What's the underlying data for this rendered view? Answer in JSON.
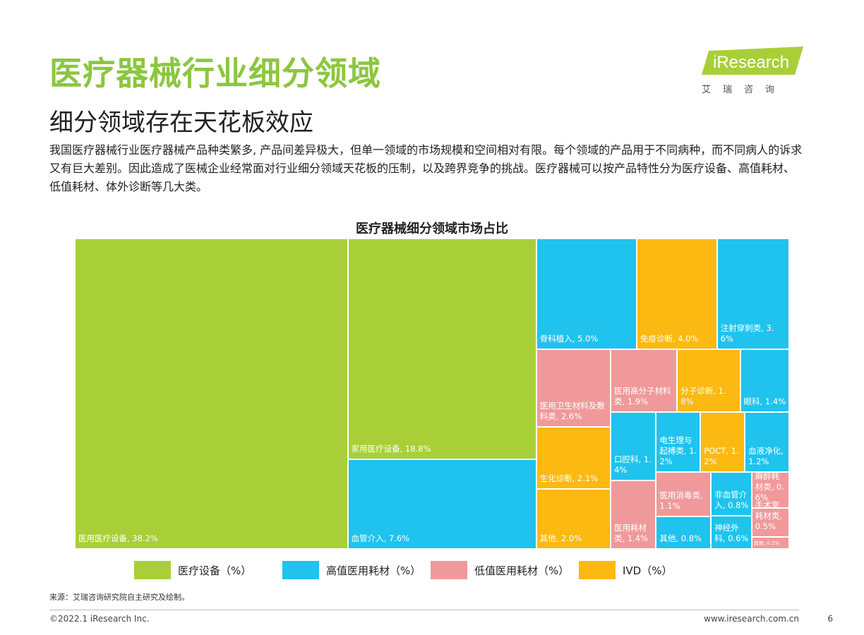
{
  "header": {
    "title": "医疗器械行业细分领域",
    "subtitle": "细分领域存在天花板效应",
    "paragraph": "我国医疗器械行业医疗器械产品种类繁多, 产品间差异极大，但单一领域的市场规模和空间相对有限。每个领域的产品用于不同病种，而不同病人的诉求又有巨大差别。因此造成了医械企业经常面对行业细分领域天花板的压制，以及跨界竞争的挑战。医疗器械可以按产品特性分为医疗设备、高值耗材、低值耗材、体外诊断等几大类。",
    "logo": "iResearch",
    "logo_sub": "艾瑞咨询"
  },
  "chart_data": {
    "type": "treemap",
    "title": "医疗器械细分领域市场占比",
    "values": [
      38.2,
      18.8,
      7.6,
      5.0,
      4.0,
      3.6,
      2.6,
      2.1,
      2.0,
      1.9,
      1.8,
      1.4,
      1.4,
      1.4,
      1.2,
      1.2,
      1.2,
      1.1,
      0.8,
      0.8,
      0.6,
      0.6,
      0.5,
      0.2
    ],
    "value_labels": [
      "医用医疗设备, 38.2%",
      "家用医疗设备, 18.8%",
      "血管介入, 7.6%",
      "骨科植入, 5.0%",
      "免疫诊断, 4.0%",
      "注射穿刺类, 3.6%",
      "医用卫生材料及敷料类, 2.6%",
      "生化诊断, 2.1%",
      "其他, 2.0%",
      "医用高分子材料类, 1.9%",
      "分子诊断, 1.8%",
      "眼科, 1.4%",
      "口腔科, 1.4%",
      "医用耗材类, 1.4%",
      "电生理与起搏类, 1.2%",
      "POCT, 1.2%",
      "血液净化, 1.2%",
      "医用消毒类, 1.1%",
      "其他, 0.8%",
      "非血管介入, 0.8%",
      "神经外科, 0.6%",
      "麻醉耗材类, 0.6%",
      "手术室耗材类, 0.5%",
      "其他, 0.2%"
    ],
    "colors": [
      "#a8cf38",
      "#a8cf38",
      "#1fc3ee",
      "#1fc3ee",
      "#fcb912",
      "#1fc3ee",
      "#f0999a",
      "#fcb912",
      "#fcb912",
      "#f0999a",
      "#fcb912",
      "#1fc3ee",
      "#1fc3ee",
      "#f0999a",
      "#1fc3ee",
      "#fcb912",
      "#1fc3ee",
      "#f0999a",
      "#1fc3ee",
      "#1fc3ee",
      "#1fc3ee",
      "#f0999a",
      "#f0999a",
      "#f0999a"
    ],
    "legend": [
      {
        "name": "医疗设备（%）",
        "color": "#a8cf38"
      },
      {
        "name": "高值医用耗材（%）",
        "color": "#1fc3ee"
      },
      {
        "name": "低值医用耗材（%）",
        "color": "#f0999a"
      },
      {
        "name": "IVD（%）",
        "color": "#fcb912"
      }
    ]
  },
  "footer": {
    "source": "来源：艾瑞咨询研究院自主研究及绘制。",
    "copyright": "©2022.1 iResearch Inc.",
    "site": "www.iresearch.com.cn",
    "page": "6"
  }
}
